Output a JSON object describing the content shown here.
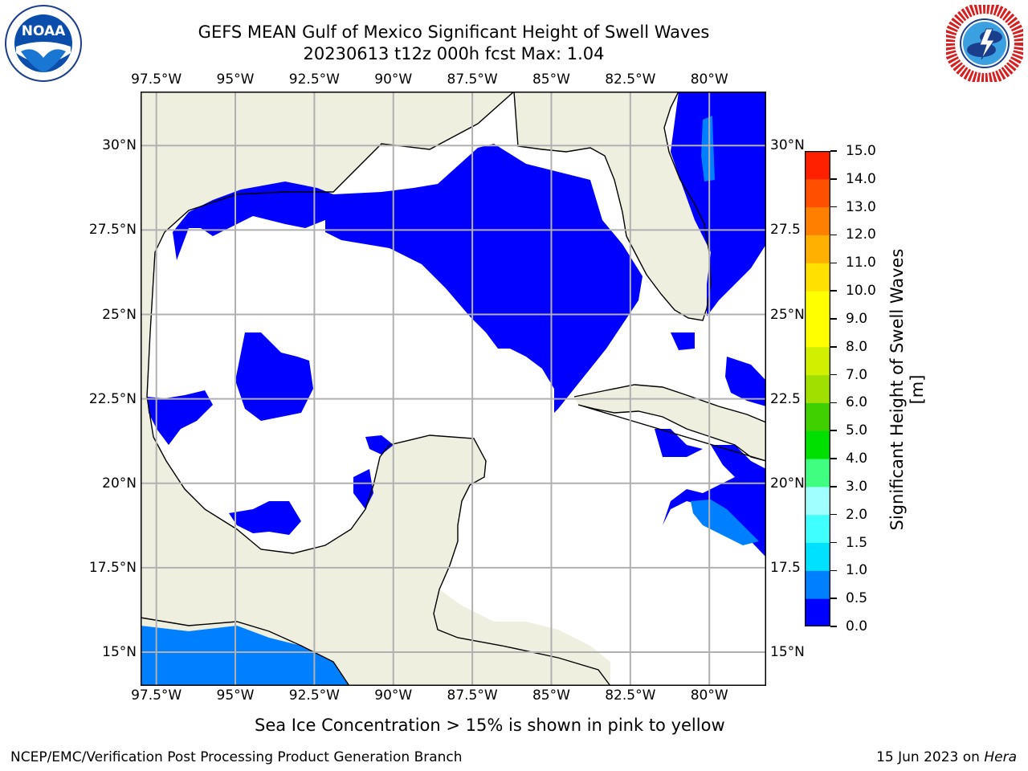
{
  "header": {
    "title_line1": "GEFS MEAN Gulf of Mexico Significant Height of Swell Waves",
    "title_line2": "20230613 t12z 000h fcst   Max: 1.04"
  },
  "logos": {
    "left": {
      "text": "NOAA",
      "ring_text": "NATIONAL OCEANIC AND ATMOSPHERIC ADMINISTRATION • U.S. DEPARTMENT OF COMMERCE"
    },
    "right": {
      "ring_text": "NATIONAL WEATHER SERVICE"
    }
  },
  "map": {
    "lon_labels": [
      "97.5°W",
      "95°W",
      "92.5°W",
      "90°W",
      "87.5°W",
      "85°W",
      "82.5°W",
      "80°W"
    ],
    "lon_values": [
      -97.5,
      -95,
      -92.5,
      -90,
      -87.5,
      -85,
      -82.5,
      -80
    ],
    "lat_labels_left": [
      "30°N",
      "27.5°N",
      "25°N",
      "22.5°N",
      "20°N",
      "17.5°N",
      "15°N"
    ],
    "lat_labels_right": [
      "30°N",
      "27.5",
      "25°N",
      "22.5",
      "20°N",
      "17.5",
      "15°N"
    ],
    "lat_values": [
      30,
      27.5,
      25,
      22.5,
      20,
      17.5,
      15
    ],
    "extent": {
      "lon_min": -98,
      "lon_max": -78.2,
      "lat_min": 14.0,
      "lat_max": 31.6
    },
    "colors": {
      "land": "#efefdf",
      "water": "#ffffff",
      "grid": "#b0b0b0",
      "coast": "#000000"
    }
  },
  "colorbar": {
    "title": "Significant Height of Swell Waves [m]",
    "ticks": [
      "0.0",
      "0.5",
      "1.0",
      "1.5",
      "2.0",
      "3.0",
      "4.0",
      "5.0",
      "6.0",
      "7.0",
      "8.0",
      "9.0",
      "10.0",
      "11.0",
      "12.0",
      "13.0",
      "14.0",
      "15.0"
    ],
    "colors": [
      "#0000ff",
      "#0080ff",
      "#00e0ff",
      "#40ffff",
      "#a0ffff",
      "#40ff80",
      "#00e000",
      "#40d000",
      "#a0e000",
      "#d0f000",
      "#ffff00",
      "#ffff00",
      "#ffe000",
      "#ffb000",
      "#ff8000",
      "#ff5000",
      "#ff2000"
    ]
  },
  "footer": {
    "note": "Sea Ice Concentration > 15% is shown in pink to yellow",
    "credit": "NCEP/EMC/Verification Post Processing Product Generation Branch",
    "date": "15 Jun 2023 on ",
    "machine": "Hera"
  }
}
